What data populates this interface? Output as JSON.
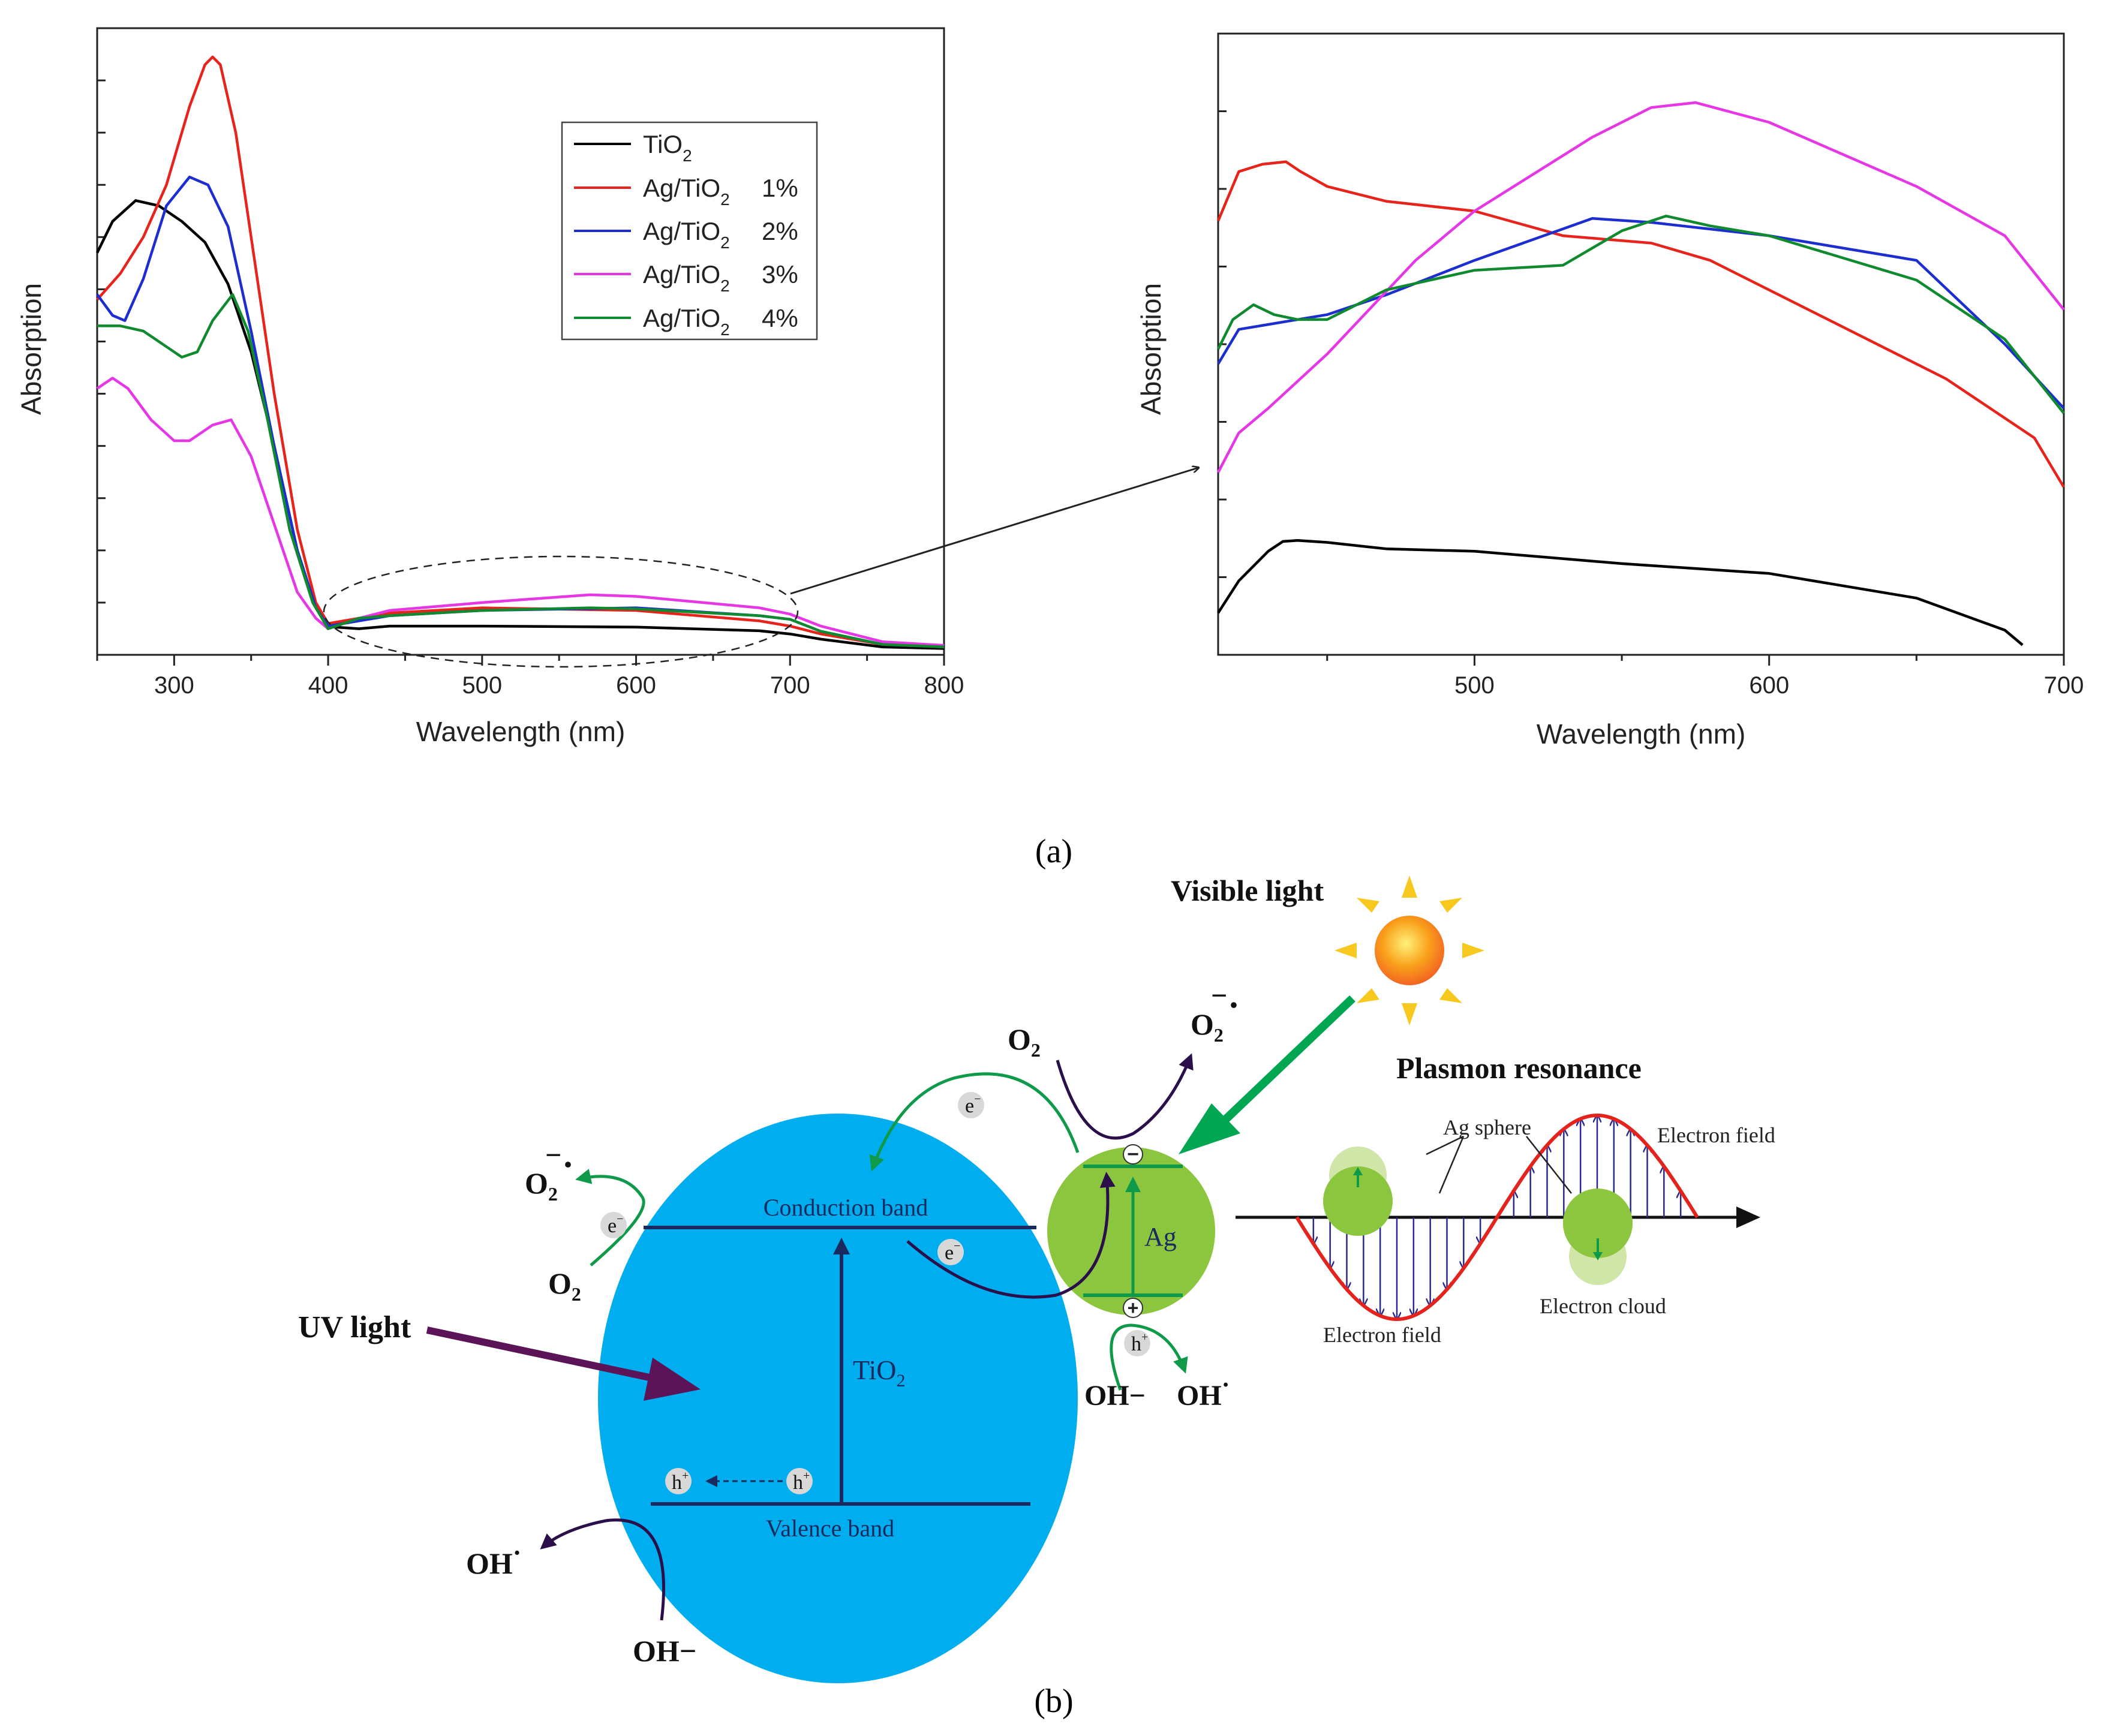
{
  "chart_data": [
    {
      "type": "line",
      "id": "left",
      "xlabel": "Wavelength (nm)",
      "ylabel": "Absorption",
      "xlim": [
        250,
        800
      ],
      "ylim": [
        0,
        1.2
      ],
      "xticks": [
        300,
        400,
        500,
        600,
        700,
        800
      ],
      "legend": [
        {
          "name": "TiO",
          "sub": "2",
          "suffix": ""
        },
        {
          "name": "Ag/TiO",
          "sub": "2",
          "suffix": "1%"
        },
        {
          "name": "Ag/TiO",
          "sub": "2",
          "suffix": "2%"
        },
        {
          "name": "Ag/TiO",
          "sub": "2",
          "suffix": "3%"
        },
        {
          "name": "Ag/TiO",
          "sub": "2",
          "suffix": "4%"
        }
      ],
      "series": [
        {
          "name": "TiO2",
          "color": "#000000",
          "x": [
            250,
            260,
            275,
            290,
            305,
            320,
            335,
            350,
            365,
            380,
            392,
            400,
            420,
            440,
            500,
            600,
            680,
            700,
            720,
            760,
            800
          ],
          "y": [
            0.77,
            0.83,
            0.87,
            0.86,
            0.83,
            0.79,
            0.71,
            0.58,
            0.4,
            0.2,
            0.09,
            0.054,
            0.05,
            0.055,
            0.055,
            0.053,
            0.046,
            0.04,
            0.03,
            0.015,
            0.012
          ]
        },
        {
          "name": "Ag/TiO2 1%",
          "color": "#e8231c",
          "x": [
            250,
            265,
            280,
            295,
            310,
            320,
            325,
            330,
            340,
            350,
            365,
            380,
            392,
            400,
            420,
            440,
            500,
            600,
            680,
            700,
            720,
            760,
            800
          ],
          "y": [
            0.68,
            0.73,
            0.8,
            0.9,
            1.05,
            1.13,
            1.145,
            1.13,
            1.0,
            0.8,
            0.5,
            0.24,
            0.1,
            0.06,
            0.07,
            0.08,
            0.09,
            0.085,
            0.065,
            0.055,
            0.04,
            0.02,
            0.015
          ]
        },
        {
          "name": "Ag/TiO2 2%",
          "color": "#1c2ed0",
          "x": [
            250,
            260,
            268,
            280,
            295,
            310,
            322,
            335,
            350,
            365,
            380,
            392,
            400,
            420,
            440,
            500,
            600,
            680,
            700,
            720,
            760,
            800
          ],
          "y": [
            0.69,
            0.65,
            0.64,
            0.72,
            0.86,
            0.915,
            0.9,
            0.82,
            0.62,
            0.4,
            0.2,
            0.09,
            0.055,
            0.065,
            0.075,
            0.085,
            0.09,
            0.075,
            0.068,
            0.045,
            0.02,
            0.015
          ]
        },
        {
          "name": "Ag/TiO2 3%",
          "color": "#e636e6",
          "x": [
            250,
            260,
            270,
            285,
            300,
            310,
            325,
            337,
            350,
            365,
            380,
            392,
            400,
            420,
            440,
            500,
            570,
            600,
            680,
            700,
            720,
            760,
            800
          ],
          "y": [
            0.51,
            0.53,
            0.51,
            0.45,
            0.41,
            0.41,
            0.44,
            0.45,
            0.38,
            0.25,
            0.12,
            0.07,
            0.05,
            0.07,
            0.085,
            0.1,
            0.115,
            0.112,
            0.09,
            0.078,
            0.055,
            0.025,
            0.018
          ]
        },
        {
          "name": "Ag/TiO2 4%",
          "color": "#0f8a2e",
          "x": [
            250,
            265,
            280,
            295,
            305,
            315,
            325,
            338,
            348,
            360,
            375,
            390,
            400,
            420,
            440,
            500,
            570,
            600,
            680,
            700,
            720,
            760,
            800
          ],
          "y": [
            0.63,
            0.63,
            0.62,
            0.59,
            0.57,
            0.58,
            0.64,
            0.69,
            0.62,
            0.46,
            0.24,
            0.1,
            0.05,
            0.07,
            0.075,
            0.085,
            0.09,
            0.088,
            0.075,
            0.068,
            0.045,
            0.02,
            0.015
          ]
        }
      ]
    },
    {
      "type": "line",
      "id": "right",
      "xlabel": "Wavelength (nm)",
      "ylabel": "Absorption",
      "xlim": [
        413,
        700
      ],
      "ylim": [
        0,
        0.126
      ],
      "xticks": [
        500,
        600,
        700
      ],
      "series": [
        {
          "name": "TiO2",
          "color": "#000000",
          "x": [
            413,
            420,
            430,
            435,
            440,
            450,
            470,
            500,
            550,
            600,
            650,
            680,
            686
          ],
          "y": [
            0.0085,
            0.015,
            0.021,
            0.023,
            0.0232,
            0.0228,
            0.0215,
            0.021,
            0.0185,
            0.0165,
            0.0115,
            0.005,
            0.002
          ]
        },
        {
          "name": "Ag/TiO2 1%",
          "color": "#e8231c",
          "x": [
            413,
            420,
            428,
            436,
            441,
            450,
            470,
            500,
            530,
            560,
            580,
            620,
            660,
            690,
            700
          ],
          "y": [
            0.088,
            0.098,
            0.0995,
            0.1,
            0.098,
            0.095,
            0.092,
            0.09,
            0.085,
            0.0835,
            0.08,
            0.068,
            0.056,
            0.044,
            0.034
          ]
        },
        {
          "name": "Ag/TiO2 2%",
          "color": "#1c2ed0",
          "x": [
            413,
            420,
            430,
            450,
            470,
            500,
            540,
            560,
            600,
            650,
            680,
            700
          ],
          "y": [
            0.059,
            0.066,
            0.067,
            0.069,
            0.073,
            0.08,
            0.0885,
            0.0877,
            0.085,
            0.08,
            0.063,
            0.05
          ]
        },
        {
          "name": "Ag/TiO2 3%",
          "color": "#e636e6",
          "x": [
            413,
            420,
            430,
            450,
            480,
            500,
            540,
            560,
            575,
            600,
            650,
            680,
            700
          ],
          "y": [
            0.037,
            0.045,
            0.05,
            0.061,
            0.08,
            0.09,
            0.105,
            0.111,
            0.112,
            0.108,
            0.095,
            0.085,
            0.07
          ]
        },
        {
          "name": "Ag/TiO2 4%",
          "color": "#0f8a2e",
          "x": [
            413,
            418,
            425,
            432,
            440,
            450,
            470,
            500,
            530,
            550,
            565,
            580,
            600,
            650,
            680,
            700
          ],
          "y": [
            0.062,
            0.068,
            0.071,
            0.069,
            0.068,
            0.068,
            0.074,
            0.078,
            0.079,
            0.086,
            0.089,
            0.087,
            0.085,
            0.076,
            0.064,
            0.049
          ]
        }
      ]
    }
  ],
  "panel_a_label": "(a)",
  "panel_b_label": "(b)",
  "diagram": {
    "visible_light": "Visible light",
    "plasmon_resonance": "Plasmon resonance",
    "uv_light": "UV light",
    "conduction_band": "Conduction band",
    "valence_band": "Valence band",
    "tio2": "TiO",
    "tio2_sub": "2",
    "ag": "Ag",
    "o2": "O",
    "o2_sub": "2",
    "o2_radical_sub": "2",
    "oh_minus": "OH−",
    "oh_radical": "OH",
    "radical_dot": "·",
    "superscript_minus": "−",
    "electron": "e",
    "electron_sup": "−",
    "hole": "h",
    "hole_sup": "+",
    "ag_minus_sign": "−",
    "ag_plus_sign": "+",
    "ag_sphere": "Ag sphere",
    "electron_field_top": "Electron field",
    "electron_field_bottom": "Electron field",
    "electron_cloud": "Electron cloud"
  },
  "colors": {
    "tio2_fill": "#00aeef",
    "ag_fill": "#8cc63f",
    "band_line": "#1b2a5e",
    "green_arrow": "#0f9a4a",
    "dark_arrow": "#2a0f4a",
    "uv_arrow": "#5b1458",
    "visible_arrow": "#00a651",
    "wave": "#e3231c",
    "field_arrow": "#2b2a8c"
  }
}
